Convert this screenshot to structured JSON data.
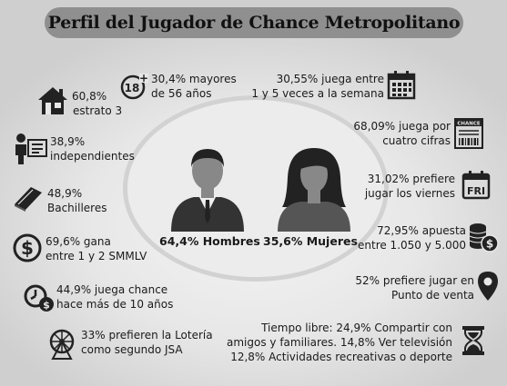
{
  "title": "Perfil del Jugador de Chance Metropolitano",
  "center": {
    "men_label": "64,4% Hombres",
    "women_label": "35,6% Mujeres"
  },
  "left": [
    {
      "line1": "60,8%",
      "line2": "estrato 3",
      "icon": "house-icon"
    },
    {
      "line1": "38,9%",
      "line2": "independientes",
      "icon": "worker-icon"
    },
    {
      "line1": "48,9%",
      "line2": "Bachilleres",
      "icon": "book-icon"
    },
    {
      "line1": "69,6% gana",
      "line2": "entre 1 y 2 SMMLV",
      "icon": "dollar-coin-icon"
    },
    {
      "line1": "44,9% juega chance",
      "line2": "hace más de 10 años",
      "icon": "clock-money-icon"
    },
    {
      "line1": "33% prefieren la Lotería",
      "line2": "como segundo JSA",
      "icon": "lottery-drum-icon"
    }
  ],
  "top_center": {
    "line1": "30,4% mayores",
    "line2": "de 56 años",
    "icon": "age-18-plus-icon",
    "icon_text": "18"
  },
  "right": [
    {
      "line1": "30,55% juega entre",
      "line2": "1 y 5 veces a la semana",
      "icon": "calendar-icon"
    },
    {
      "line1": "68,09%  juega por",
      "line2": "cuatro cifras",
      "icon": "chance-ticket-icon",
      "icon_text": "CHANCE"
    },
    {
      "line1": "31,02% prefiere",
      "line2": "jugar los viernes",
      "icon": "friday-calendar-icon",
      "icon_text": "FRI"
    },
    {
      "line1": "72,95% apuesta",
      "line2": "entre 1.050 y 5.000",
      "icon": "coin-stack-icon"
    },
    {
      "line1": "52% prefiere jugar en",
      "line2": "Punto de venta",
      "icon": "location-pin-icon"
    }
  ],
  "bottom_right": {
    "line1": "Tiempo libre: 24,9% Compartir con",
    "line2": "amigos y familiares. 14,8% Ver televisión",
    "line3": "12,8% Actividades recreativas o deporte",
    "icon": "hourglass-icon"
  }
}
